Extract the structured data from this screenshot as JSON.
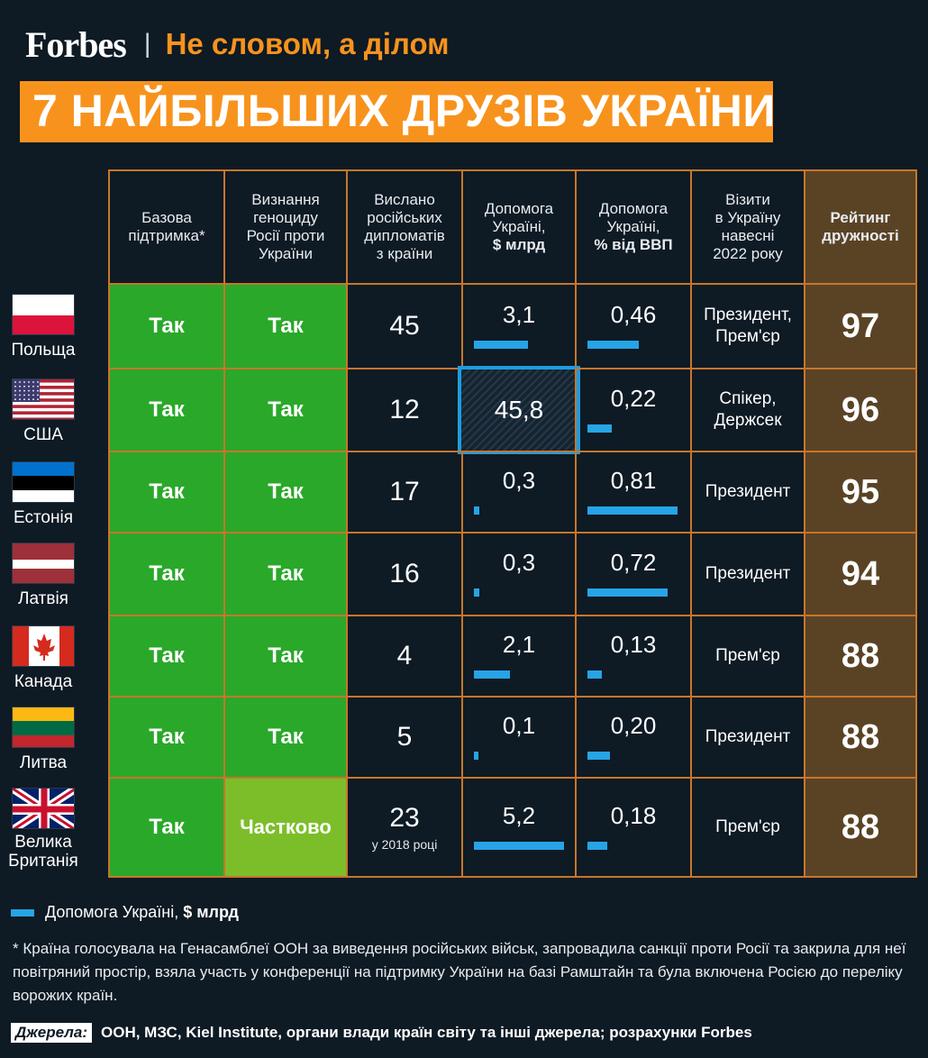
{
  "header": {
    "brand": "Forbes",
    "separator": "|",
    "tagline": "Не словом, а ділом"
  },
  "title": "7 НАЙБІЛЬШИХ ДРУЗІВ УКРАЇНИ",
  "columns": [
    {
      "lines": [
        "Базова",
        "підтримка*"
      ],
      "bold_last": 0
    },
    {
      "lines": [
        "Визнання",
        "геноциду",
        "Росії проти",
        "України"
      ],
      "bold_last": 0
    },
    {
      "lines": [
        "Вислано",
        "російських",
        "дипломатів",
        "з країни"
      ],
      "bold_last": 0
    },
    {
      "lines": [
        "Допомога",
        "Україні,",
        "$ млрд"
      ],
      "bold_last": 1
    },
    {
      "lines": [
        "Допомога",
        "Україні,",
        "% від ВВП"
      ],
      "bold_last": 1
    },
    {
      "lines": [
        "Візити",
        "в Україну",
        "навесні",
        "2022 року"
      ],
      "bold_last": 0
    },
    {
      "lines": [
        "Рейтинг",
        "дружності"
      ],
      "bold_last": 2
    }
  ],
  "colors": {
    "yes": "#2aa82a",
    "partial": "#7cbe2a",
    "bar": "#27a4e6",
    "rating_bg": "#5a4325",
    "grid": "#c8762a",
    "orange": "#f7931d"
  },
  "chart_data": {
    "type": "table",
    "rows": [
      {
        "country": "Польща",
        "flag": "poland-flag",
        "basic_support": "Так",
        "genocide": "Так",
        "diplomats": "45",
        "diplomats_note": "",
        "aid_usd_bn": 3.1,
        "aid_label": "3,1",
        "aid_gdp_pct": 0.46,
        "gdp_label": "0,46",
        "visits": [
          "Президент,",
          "Прем'єр"
        ],
        "rating": "97"
      },
      {
        "country": "США",
        "flag": "usa-flag",
        "basic_support": "Так",
        "genocide": "Так",
        "diplomats": "12",
        "diplomats_note": "",
        "aid_usd_bn": 45.8,
        "aid_label": "45,8",
        "aid_gdp_pct": 0.22,
        "gdp_label": "0,22",
        "visits": [
          "Спікер,",
          "Держсек"
        ],
        "rating": "96"
      },
      {
        "country": "Естонія",
        "flag": "estonia-flag",
        "basic_support": "Так",
        "genocide": "Так",
        "diplomats": "17",
        "diplomats_note": "",
        "aid_usd_bn": 0.3,
        "aid_label": "0,3",
        "aid_gdp_pct": 0.81,
        "gdp_label": "0,81",
        "visits": [
          "Президент"
        ],
        "rating": "95"
      },
      {
        "country": "Латвія",
        "flag": "latvia-flag",
        "basic_support": "Так",
        "genocide": "Так",
        "diplomats": "16",
        "diplomats_note": "",
        "aid_usd_bn": 0.3,
        "aid_label": "0,3",
        "aid_gdp_pct": 0.72,
        "gdp_label": "0,72",
        "visits": [
          "Президент"
        ],
        "rating": "94"
      },
      {
        "country": "Канада",
        "flag": "canada-flag",
        "basic_support": "Так",
        "genocide": "Так",
        "diplomats": "4",
        "diplomats_note": "",
        "aid_usd_bn": 2.1,
        "aid_label": "2,1",
        "aid_gdp_pct": 0.13,
        "gdp_label": "0,13",
        "visits": [
          "Прем'єр"
        ],
        "rating": "88"
      },
      {
        "country": "Литва",
        "flag": "lithuania-flag",
        "basic_support": "Так",
        "genocide": "Так",
        "diplomats": "5",
        "diplomats_note": "",
        "aid_usd_bn": 0.1,
        "aid_label": "0,1",
        "aid_gdp_pct": 0.2,
        "gdp_label": "0,20",
        "visits": [
          "Президент"
        ],
        "rating": "88"
      },
      {
        "country": "Велика Британія",
        "flag": "uk-flag",
        "basic_support": "Так",
        "genocide": "Частково",
        "diplomats": "23",
        "diplomats_note": "у 2018 році",
        "aid_usd_bn": 5.2,
        "aid_label": "5,2",
        "aid_gdp_pct": 0.18,
        "gdp_label": "0,18",
        "visits": [
          "Прем'єр"
        ],
        "rating": "88"
      }
    ]
  },
  "legend": {
    "label": "Допомога Україні,",
    "label_bold": "$ млрд"
  },
  "footnote": "* Країна голосувала на Генасамблеї ООН за виведення російських військ, запровадила санкції проти Росії та закрила для неї повітряний простір, взяла участь у конференції на підтримку України на базі Рамштайн та була включена Росією до переліку ворожих країн.",
  "sources": {
    "label": "Джерела:",
    "text": "ООН, МЗС, Kiel Institute, органи влади країн світу та інші джерела; розрахунки Forbes"
  }
}
